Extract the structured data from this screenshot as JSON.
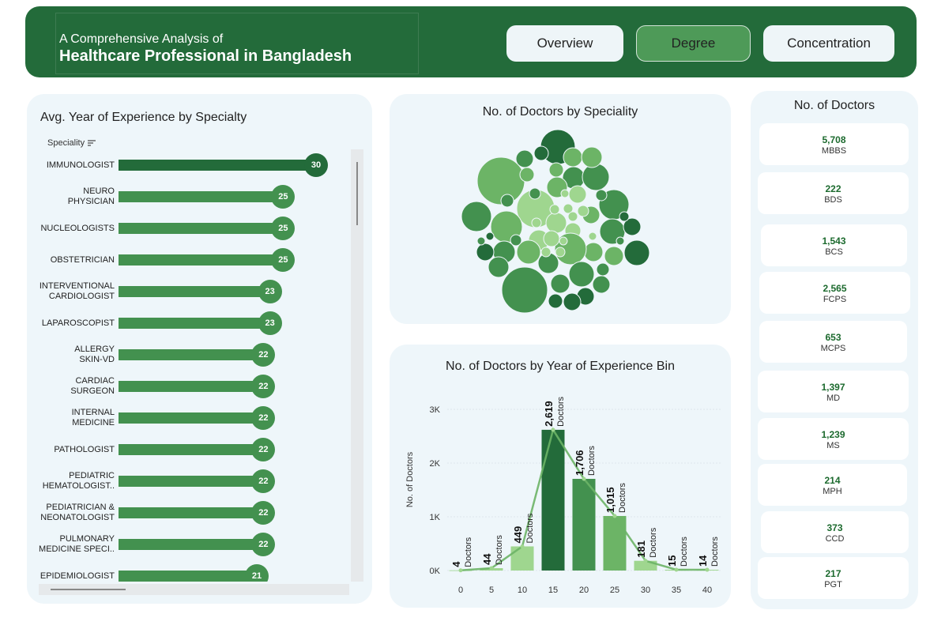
{
  "header": {
    "subtitle": "A Comprehensive Analysis of",
    "title": "Healthcare Professional in Bangladesh",
    "nav": [
      {
        "label": "Overview",
        "active": false
      },
      {
        "label": "Degree",
        "active": true
      },
      {
        "label": "Concentration",
        "active": false
      }
    ]
  },
  "experience_panel": {
    "title": "Avg. Year of Experience by Specialty",
    "sort_label": "Speciality"
  },
  "bubble_panel": {
    "title": "No. of Doctors by Speciality"
  },
  "histogram_panel": {
    "title": "No. of Doctors by Year of Experience Bin"
  },
  "degree_panel": {
    "title": "No. of Doctors"
  },
  "colors": {
    "dark": "#236b3a",
    "medium": "#43914f",
    "light": "#6cb466",
    "pale": "#9fd68f",
    "panel": "#eef6fa"
  },
  "chart_data": [
    {
      "type": "bar",
      "orientation": "horizontal",
      "title": "Avg. Year of Experience by Specialty",
      "categories": [
        "IMMUNOLOGIST",
        "NEURO PHYSICIAN",
        "NUCLEOLOGISTS",
        "OBSTETRICIAN",
        "INTERVENTIONAL CARDIOLOGIST",
        "LAPAROSCOPIST",
        "ALLERGY SKIN-VD",
        "CARDIAC SURGEON",
        "INTERNAL MEDICINE",
        "PATHOLOGIST",
        "PEDIATRIC HEMATOLOGIST..",
        "PEDIATRICIAN & NEONATOLOGIST",
        "PULMONARY MEDICINE SPECI..",
        "EPIDEMIOLOGIST"
      ],
      "category_lines": [
        [
          "IMMUNOLOGIST"
        ],
        [
          "NEURO",
          "PHYSICIAN"
        ],
        [
          "NUCLEOLOGISTS"
        ],
        [
          "OBSTETRICIAN"
        ],
        [
          "INTERVENTIONAL",
          "CARDIOLOGIST"
        ],
        [
          "LAPAROSCOPIST"
        ],
        [
          "ALLERGY",
          "SKIN-VD"
        ],
        [
          "CARDIAC",
          "SURGEON"
        ],
        [
          "INTERNAL",
          "MEDICINE"
        ],
        [
          "PATHOLOGIST"
        ],
        [
          "PEDIATRIC",
          "HEMATOLOGIST.."
        ],
        [
          "PEDIATRICIAN &",
          "NEONATOLOGIST"
        ],
        [
          "PULMONARY",
          "MEDICINE SPECI.."
        ],
        [
          "EPIDEMIOLOGIST"
        ]
      ],
      "values": [
        30,
        25,
        25,
        25,
        23,
        23,
        22,
        22,
        22,
        22,
        22,
        22,
        22,
        21
      ],
      "xlim": [
        0,
        30
      ]
    },
    {
      "type": "bar",
      "title": "No. of Doctors by Year of Experience Bin",
      "x": [
        0,
        5,
        10,
        15,
        20,
        25,
        30,
        35,
        40
      ],
      "values": [
        4,
        44,
        449,
        2619,
        1706,
        1015,
        181,
        15,
        14
      ],
      "value_labels": [
        "4",
        "44",
        "449",
        "2,619",
        "1,706",
        "1,015",
        "181",
        "15",
        "14"
      ],
      "value_suffix": "Doctors",
      "ylabel": "No. of Doctors",
      "yticks": [
        "0K",
        "1K",
        "2K",
        "3K"
      ],
      "ylim": [
        0,
        3200
      ],
      "overlay": "line"
    },
    {
      "type": "table",
      "title": "No. of Doctors",
      "rows": [
        {
          "value": "5,708",
          "label": "MBBS"
        },
        {
          "value": "222",
          "label": "BDS"
        },
        {
          "value": "1,543",
          "label": "BCS"
        },
        {
          "value": "2,565",
          "label": "FCPS"
        },
        {
          "value": "653",
          "label": "MCPS"
        },
        {
          "value": "1,397",
          "label": "MD"
        },
        {
          "value": "1,239",
          "label": "MS"
        },
        {
          "value": "214",
          "label": "MPH"
        },
        {
          "value": "373",
          "label": "CCD"
        },
        {
          "value": "217",
          "label": "PGT"
        }
      ]
    }
  ]
}
